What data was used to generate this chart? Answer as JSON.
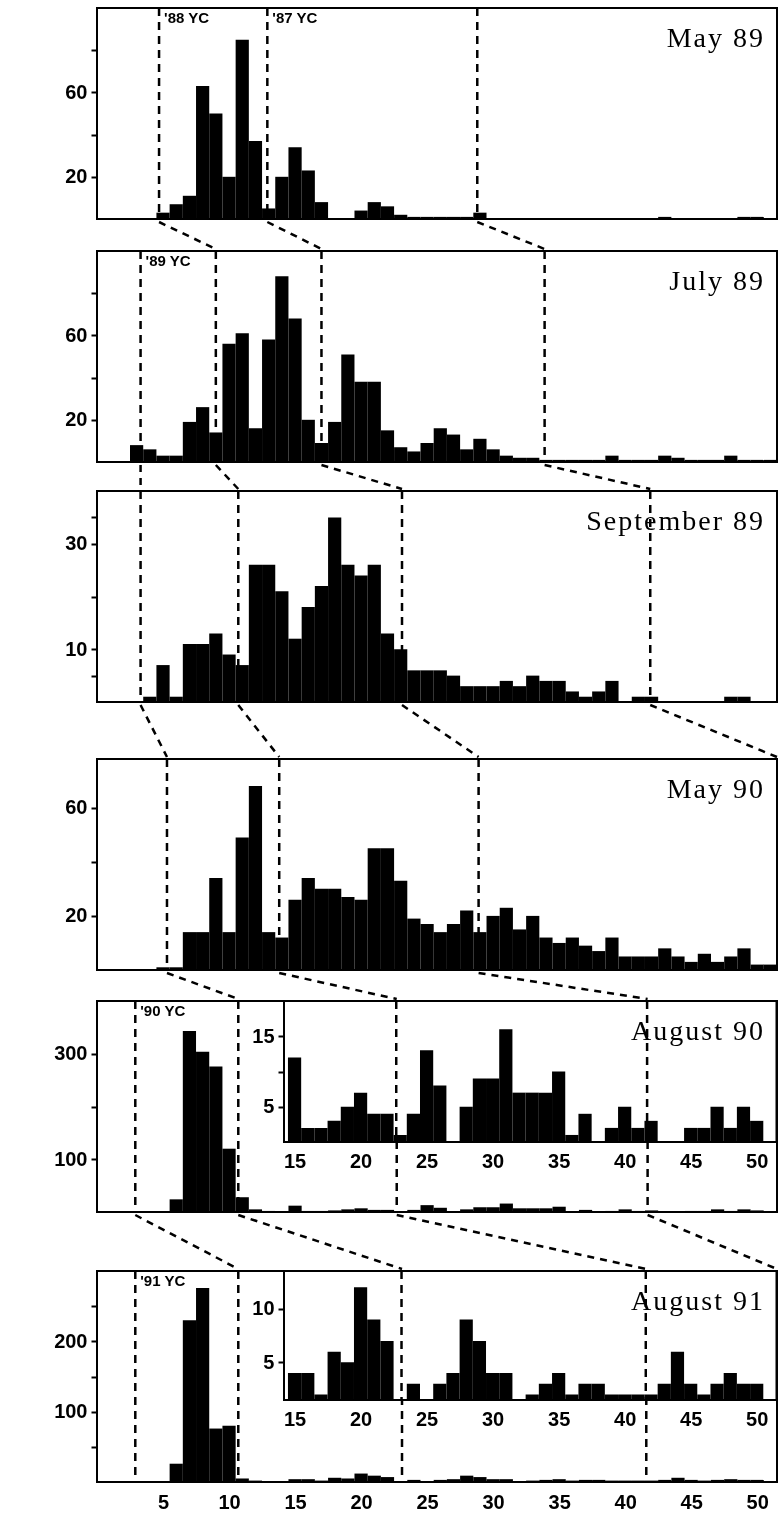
{
  "chart_data": [
    {
      "type": "histogram",
      "title": "May 89",
      "color": "#000000",
      "xlim": [
        0,
        51.5
      ],
      "ylim": [
        0,
        100
      ],
      "yticks": [
        20,
        {
          "value": 40,
          "label": null
        },
        60,
        {
          "value": 80,
          "label": null
        }
      ],
      "tick_labels": "y",
      "bins": [
        0.5,
        1.5,
        2.5,
        3.5,
        4.5,
        5.5,
        6.5,
        7.5,
        8.5,
        9.5,
        10.5,
        11.5,
        12.5,
        13.5,
        14.5,
        15.5,
        16.5,
        17.5,
        18.5,
        19.5,
        20.5,
        21.5,
        22.5,
        23.5,
        24.5,
        25.5,
        26.5,
        27.5,
        28.5,
        29.5,
        30.5,
        31.5,
        32.5,
        33.5,
        34.5,
        35.5,
        36.5,
        37.5,
        38.5,
        39.5,
        40.5,
        41.5,
        42.5,
        43.5,
        44.5,
        45.5,
        46.5,
        47.5,
        48.5,
        49.5,
        50.5,
        51.5
      ],
      "values": [
        0,
        0,
        0,
        0,
        3,
        7,
        11,
        63,
        50,
        20,
        85,
        37,
        5,
        20,
        34,
        23,
        8,
        0,
        0,
        4,
        8,
        6,
        2,
        1,
        1,
        1,
        1,
        1,
        3,
        0,
        0,
        0,
        0,
        0,
        0,
        0,
        0,
        0,
        0,
        0,
        0,
        0,
        1,
        0,
        0,
        0,
        0,
        0,
        1,
        1,
        0
      ],
      "ref_lines": [
        {
          "axis": "x",
          "value": 4.7,
          "label": "'88 YC",
          "color": "#000000",
          "line_style": "dashed"
        },
        {
          "axis": "x",
          "value": 12.9,
          "label": "'87 YC",
          "color": "#000000",
          "line_style": "dashed"
        },
        {
          "axis": "x",
          "value": 28.8,
          "color": "#000000",
          "line_style": "dashed"
        }
      ]
    },
    {
      "type": "histogram",
      "title": "July 89",
      "color": "#000000",
      "xlim": [
        0,
        51.5
      ],
      "ylim": [
        0,
        100
      ],
      "yticks": [
        20,
        {
          "value": 40,
          "label": null
        },
        60,
        {
          "value": 80,
          "label": null
        }
      ],
      "tick_labels": "y",
      "bins": [
        0.5,
        1.5,
        2.5,
        3.5,
        4.5,
        5.5,
        6.5,
        7.5,
        8.5,
        9.5,
        10.5,
        11.5,
        12.5,
        13.5,
        14.5,
        15.5,
        16.5,
        17.5,
        18.5,
        19.5,
        20.5,
        21.5,
        22.5,
        23.5,
        24.5,
        25.5,
        26.5,
        27.5,
        28.5,
        29.5,
        30.5,
        31.5,
        32.5,
        33.5,
        34.5,
        35.5,
        36.5,
        37.5,
        38.5,
        39.5,
        40.5,
        41.5,
        42.5,
        43.5,
        44.5,
        45.5,
        46.5,
        47.5,
        48.5,
        49.5,
        50.5,
        51.5
      ],
      "values": [
        0,
        0,
        8,
        6,
        3,
        3,
        19,
        26,
        14,
        56,
        61,
        16,
        58,
        88,
        68,
        20,
        9,
        19,
        51,
        38,
        38,
        15,
        7,
        5,
        9,
        16,
        13,
        6,
        11,
        6,
        3,
        2,
        2,
        1,
        1,
        1,
        1,
        1,
        3,
        1,
        1,
        1,
        3,
        2,
        1,
        1,
        1,
        3,
        1,
        1,
        1
      ],
      "ref_lines": [
        {
          "axis": "x",
          "value": 3.3,
          "label": "'89 YC",
          "color": "#000000",
          "line_style": "dashed"
        },
        {
          "axis": "x",
          "value": 9,
          "color": "#000000",
          "line_style": "dashed"
        },
        {
          "axis": "x",
          "value": 17,
          "color": "#000000",
          "line_style": "dashed"
        },
        {
          "axis": "x",
          "value": 33.9,
          "color": "#000000",
          "line_style": "dashed"
        }
      ]
    },
    {
      "type": "histogram",
      "title": "September 89",
      "color": "#000000",
      "xlim": [
        0,
        51.5
      ],
      "ylim": [
        0,
        40
      ],
      "yticks": [
        {
          "value": 5,
          "label": null
        },
        10,
        {
          "value": 20,
          "label": null
        },
        30,
        {
          "value": 35,
          "label": null
        }
      ],
      "tick_labels": "y",
      "bins": [
        0.5,
        1.5,
        2.5,
        3.5,
        4.5,
        5.5,
        6.5,
        7.5,
        8.5,
        9.5,
        10.5,
        11.5,
        12.5,
        13.5,
        14.5,
        15.5,
        16.5,
        17.5,
        18.5,
        19.5,
        20.5,
        21.5,
        22.5,
        23.5,
        24.5,
        25.5,
        26.5,
        27.5,
        28.5,
        29.5,
        30.5,
        31.5,
        32.5,
        33.5,
        34.5,
        35.5,
        36.5,
        37.5,
        38.5,
        39.5,
        40.5,
        41.5,
        42.5,
        43.5,
        44.5,
        45.5,
        46.5,
        47.5,
        48.5,
        49.5,
        50.5,
        51.5
      ],
      "values": [
        0,
        0,
        0,
        1,
        7,
        1,
        11,
        11,
        13,
        9,
        7,
        26,
        26,
        21,
        12,
        18,
        22,
        35,
        26,
        24,
        26,
        13,
        10,
        6,
        6,
        6,
        5,
        3,
        3,
        3,
        4,
        3,
        5,
        4,
        4,
        2,
        1,
        2,
        4,
        0,
        1,
        1,
        0,
        0,
        0,
        0,
        0,
        1,
        1,
        0,
        0
      ],
      "ref_lines": [
        {
          "axis": "x",
          "value": 3.3,
          "color": "#000000",
          "line_style": "dashed"
        },
        {
          "axis": "x",
          "value": 10.7,
          "color": "#000000",
          "line_style": "dashed"
        },
        {
          "axis": "x",
          "value": 23.1,
          "color": "#000000",
          "line_style": "dashed"
        },
        {
          "axis": "x",
          "value": 41.9,
          "color": "#000000",
          "line_style": "dashed"
        }
      ]
    },
    {
      "type": "histogram",
      "title": "May 90",
      "color": "#000000",
      "xlim": [
        0,
        51.5
      ],
      "ylim": [
        0,
        78
      ],
      "yticks": [
        20,
        {
          "value": 40,
          "label": null
        },
        60
      ],
      "tick_labels": "y",
      "bins": [
        0.5,
        1.5,
        2.5,
        3.5,
        4.5,
        5.5,
        6.5,
        7.5,
        8.5,
        9.5,
        10.5,
        11.5,
        12.5,
        13.5,
        14.5,
        15.5,
        16.5,
        17.5,
        18.5,
        19.5,
        20.5,
        21.5,
        22.5,
        23.5,
        24.5,
        25.5,
        26.5,
        27.5,
        28.5,
        29.5,
        30.5,
        31.5,
        32.5,
        33.5,
        34.5,
        35.5,
        36.5,
        37.5,
        38.5,
        39.5,
        40.5,
        41.5,
        42.5,
        43.5,
        44.5,
        45.5,
        46.5,
        47.5,
        48.5,
        49.5,
        50.5,
        51.5
      ],
      "values": [
        0,
        0,
        0,
        0,
        1,
        1,
        14,
        14,
        34,
        14,
        49,
        68,
        14,
        12,
        26,
        34,
        30,
        30,
        27,
        26,
        45,
        45,
        33,
        19,
        17,
        14,
        17,
        22,
        14,
        20,
        23,
        15,
        20,
        12,
        10,
        12,
        9,
        7,
        12,
        5,
        5,
        5,
        8,
        5,
        3,
        6,
        3,
        5,
        8,
        2,
        2
      ],
      "ref_lines": [
        {
          "axis": "x",
          "value": 5.3,
          "color": "#000000",
          "line_style": "dashed"
        },
        {
          "axis": "x",
          "value": 13.8,
          "color": "#000000",
          "line_style": "dashed"
        },
        {
          "axis": "x",
          "value": 28.9,
          "color": "#000000",
          "line_style": "dashed"
        }
      ]
    },
    {
      "type": "histogram",
      "title": "August 90",
      "color": "#000000",
      "xlim": [
        0,
        51.5
      ],
      "ylim": [
        0,
        400
      ],
      "yticks": [
        100,
        {
          "value": 200,
          "label": null
        },
        300
      ],
      "tick_labels": "y",
      "bins": [
        0.5,
        1.5,
        2.5,
        3.5,
        4.5,
        5.5,
        6.5,
        7.5,
        8.5,
        9.5,
        10.5,
        11.5,
        12.5,
        13.5,
        14.5,
        15.5,
        16.5,
        17.5,
        18.5,
        19.5,
        20.5,
        21.5,
        22.5,
        23.5,
        24.5,
        25.5,
        26.5,
        27.5,
        28.5,
        29.5,
        30.5,
        31.5,
        32.5,
        33.5,
        34.5,
        35.5,
        36.5,
        37.5,
        38.5,
        39.5,
        40.5,
        41.5,
        42.5,
        43.5,
        44.5,
        45.5,
        46.5,
        47.5,
        48.5,
        49.5,
        50.5,
        51.5
      ],
      "values": [
        0,
        0,
        0,
        0,
        0,
        24,
        343,
        304,
        276,
        120,
        28,
        5,
        2,
        1,
        12,
        2,
        2,
        3,
        5,
        7,
        4,
        4,
        1,
        4,
        13,
        8,
        0,
        5,
        9,
        9,
        16,
        7,
        7,
        7,
        10,
        1,
        4,
        0,
        2,
        5,
        2,
        3,
        0,
        0,
        2,
        2,
        5,
        2,
        5,
        3,
        0
      ],
      "ref_lines": [
        {
          "axis": "x",
          "value": 2.9,
          "label": "'90 YC",
          "color": "#000000",
          "line_style": "dashed"
        },
        {
          "axis": "x",
          "value": 10.7,
          "color": "#000000",
          "line_style": "dashed"
        },
        {
          "axis": "x",
          "value": 22.7,
          "color": "#000000",
          "line_style": "dashed"
        },
        {
          "axis": "x",
          "value": 41.7,
          "color": "#000000",
          "line_style": "dashed"
        }
      ]
    },
    {
      "type": "histogram",
      "color": "#000000",
      "xlim": [
        14.2,
        51.5
      ],
      "ylim": [
        0,
        20
      ],
      "xticks": [
        15,
        20,
        25,
        30,
        35,
        40,
        45,
        50
      ],
      "yticks": [
        5,
        {
          "value": 10,
          "label": null
        },
        15
      ],
      "bins": [
        14.5,
        15.5,
        16.5,
        17.5,
        18.5,
        19.5,
        20.5,
        21.5,
        22.5,
        23.5,
        24.5,
        25.5,
        26.5,
        27.5,
        28.5,
        29.5,
        30.5,
        31.5,
        32.5,
        33.5,
        34.5,
        35.5,
        36.5,
        37.5,
        38.5,
        39.5,
        40.5,
        41.5,
        42.5,
        43.5,
        44.5,
        45.5,
        46.5,
        47.5,
        48.5,
        49.5,
        50.5
      ],
      "values": [
        12,
        2,
        2,
        3,
        5,
        7,
        4,
        4,
        1,
        4,
        13,
        8,
        0,
        5,
        9,
        9,
        16,
        7,
        7,
        7,
        10,
        1,
        4,
        0,
        2,
        5,
        2,
        3,
        0,
        0,
        2,
        2,
        5,
        2,
        5,
        3
      ],
      "ref_lines": [
        {
          "axis": "x",
          "value": 22.7,
          "color": "#000000",
          "line_style": "dashed"
        },
        {
          "axis": "x",
          "value": 41.7,
          "color": "#000000",
          "line_style": "dashed"
        }
      ]
    },
    {
      "type": "histogram",
      "title": "August 91",
      "color": "#000000",
      "xlim": [
        0,
        51.5
      ],
      "ylim": [
        0,
        300
      ],
      "xticks": [
        5,
        10,
        15,
        20,
        25,
        30,
        35,
        40,
        45,
        50
      ],
      "yticks": [
        {
          "value": 50,
          "label": null
        },
        100,
        {
          "value": 150,
          "label": null
        },
        200,
        {
          "value": 250,
          "label": null
        }
      ],
      "bins": [
        0.5,
        1.5,
        2.5,
        3.5,
        4.5,
        5.5,
        6.5,
        7.5,
        8.5,
        9.5,
        10.5,
        11.5,
        12.5,
        13.5,
        14.5,
        15.5,
        16.5,
        17.5,
        18.5,
        19.5,
        20.5,
        21.5,
        22.5,
        23.5,
        24.5,
        25.5,
        26.5,
        27.5,
        28.5,
        29.5,
        30.5,
        31.5,
        32.5,
        33.5,
        34.5,
        35.5,
        36.5,
        37.5,
        38.5,
        39.5,
        40.5,
        41.5,
        42.5,
        43.5,
        44.5,
        45.5,
        46.5,
        47.5,
        48.5,
        49.5,
        50.5,
        51.5
      ],
      "values": [
        0,
        0,
        0,
        0,
        0,
        26,
        230,
        276,
        76,
        80,
        5,
        2,
        1,
        1,
        4,
        4,
        2,
        6,
        5,
        12,
        9,
        7,
        null,
        3,
        null,
        3,
        4,
        9,
        7,
        4,
        4,
        null,
        2,
        3,
        4,
        2,
        3,
        3,
        2,
        2,
        2,
        2,
        3,
        6,
        3,
        2,
        3,
        4,
        3,
        3,
        0
      ],
      "ref_lines": [
        {
          "axis": "x",
          "value": 2.9,
          "label": "'91 YC",
          "color": "#000000",
          "line_style": "dashed"
        },
        {
          "axis": "x",
          "value": 10.7,
          "color": "#000000",
          "line_style": "dashed"
        },
        {
          "axis": "x",
          "value": 23.1,
          "color": "#000000",
          "line_style": "dashed"
        },
        {
          "axis": "x",
          "value": 41.6,
          "color": "#000000",
          "line_style": "dashed"
        }
      ]
    },
    {
      "type": "histogram",
      "color": "#000000",
      "xlim": [
        14.2,
        51.5
      ],
      "ylim": [
        1.5,
        13.5
      ],
      "xticks": [
        15,
        20,
        25,
        30,
        35,
        40,
        45,
        50
      ],
      "yticks": [
        5,
        10
      ],
      "bins": [
        14.5,
        15.5,
        16.5,
        17.5,
        18.5,
        19.5,
        20.5,
        21.5,
        22.5,
        23.5,
        24.5,
        25.5,
        26.5,
        27.5,
        28.5,
        29.5,
        30.5,
        31.5,
        32.5,
        33.5,
        34.5,
        35.5,
        36.5,
        37.5,
        38.5,
        39.5,
        40.5,
        41.5,
        42.5,
        43.5,
        44.5,
        45.5,
        46.5,
        47.5,
        48.5,
        49.5,
        50.5
      ],
      "values": [
        4,
        4,
        2,
        6,
        5,
        12,
        9,
        7,
        null,
        3,
        null,
        3,
        4,
        9,
        7,
        4,
        4,
        null,
        2,
        3,
        4,
        2,
        3,
        3,
        2,
        2,
        2,
        2,
        3,
        6,
        3,
        2,
        3,
        4,
        3,
        3
      ],
      "ref_lines": [
        {
          "axis": "x",
          "value": 23.1,
          "color": "#000000",
          "line_style": "dashed"
        },
        {
          "axis": "x",
          "value": 41.6,
          "color": "#000000",
          "line_style": "dashed"
        }
      ]
    }
  ]
}
